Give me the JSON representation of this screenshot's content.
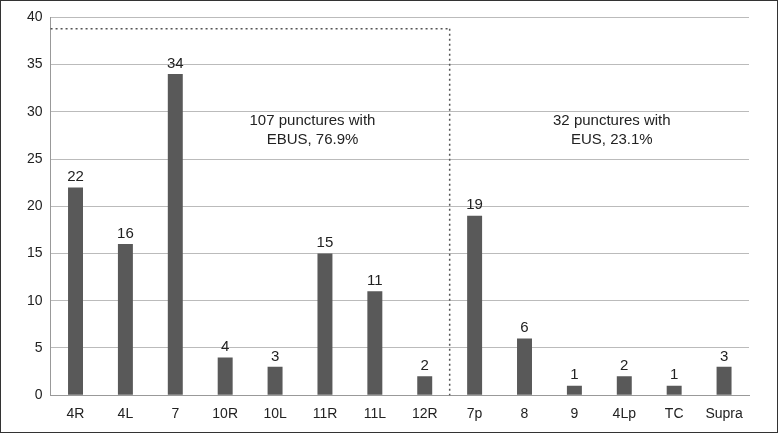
{
  "chart_data": {
    "type": "bar",
    "categories": [
      "4R",
      "4L",
      "7",
      "10R",
      "10L",
      "11R",
      "11L",
      "12R",
      "7p",
      "8",
      "9",
      "4Lp",
      "TC",
      "Supra"
    ],
    "values": [
      22,
      16,
      34,
      4,
      3,
      15,
      11,
      2,
      19,
      6,
      1,
      2,
      1,
      3
    ],
    "color": "#595959",
    "ylim": [
      0,
      40
    ],
    "yticks": [
      0,
      5,
      10,
      15,
      20,
      25,
      30,
      35,
      40
    ],
    "grid": true,
    "data_labels": true,
    "annotations": [
      {
        "text": [
          "107 punctures with",
          "EBUS, 76.9%"
        ],
        "categories": [
          "4R",
          "4L",
          "7",
          "10R",
          "10L",
          "11R",
          "11L",
          "12R"
        ]
      },
      {
        "text": [
          "32 punctures with",
          "EUS, 23.1%"
        ],
        "categories": [
          "7p",
          "8",
          "9",
          "4Lp",
          "TC",
          "Supra"
        ]
      }
    ]
  }
}
